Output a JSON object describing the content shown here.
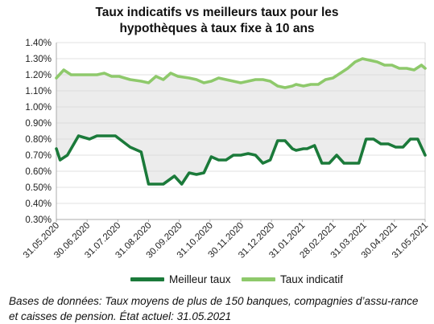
{
  "title_line1": "Taux indicatifs vs meilleurs taux pour les",
  "title_line2": "hypothèques à taux fixe à 10 ans",
  "footnote": "Bases de données: Taux moyens de plus de 150 banques, compagnies d’assu-rance et caisses de pension. État actuel: 31.05.2021",
  "colors": {
    "best": "#1b7a3a",
    "indicative": "#8ec96b",
    "band": "#ececec",
    "grid": "#d6d6d6"
  },
  "chart_data": {
    "type": "line",
    "title": "Taux indicatifs vs meilleurs taux pour les hypothèques à taux fixe à 10 ans",
    "ylim": [
      0.3,
      1.4
    ],
    "y_ticks": [
      "0.30%",
      "0.40%",
      "0.50%",
      "0.60%",
      "0.70%",
      "0.80%",
      "0.90%",
      "1.00%",
      "1.10%",
      "1.20%",
      "1.30%",
      "1.40%"
    ],
    "x_ticks": [
      "31.05.2020",
      "30.06.2020",
      "31.07.2020",
      "31.08.2020",
      "30.09.2020",
      "31.10.2020",
      "30.11.2020",
      "31.12.2020",
      "31.01.2021",
      "28.02.2021",
      "31.03.2021",
      "30.04.2021",
      "31.05.2021"
    ],
    "legend_position": "bottom",
    "grid": true,
    "series": [
      {
        "name": "Meilleur taux",
        "x": [
          0,
          1,
          3,
          6,
          9,
          11,
          13,
          16,
          20,
          23,
          25,
          27,
          29,
          32,
          34,
          36,
          38,
          40,
          42,
          44,
          46,
          48,
          50,
          52,
          54,
          56,
          58,
          60,
          62,
          64,
          65,
          67,
          68,
          70,
          72,
          74,
          76,
          78,
          80,
          82,
          84,
          86,
          88,
          90,
          92,
          94,
          96,
          98,
          100
        ],
        "y": [
          0.74,
          0.67,
          0.7,
          0.82,
          0.8,
          0.82,
          0.82,
          0.82,
          0.75,
          0.72,
          0.52,
          0.52,
          0.52,
          0.57,
          0.52,
          0.59,
          0.58,
          0.59,
          0.69,
          0.67,
          0.67,
          0.7,
          0.7,
          0.71,
          0.7,
          0.65,
          0.67,
          0.79,
          0.79,
          0.74,
          0.73,
          0.74,
          0.74,
          0.76,
          0.65,
          0.65,
          0.7,
          0.65,
          0.65,
          0.65,
          0.8,
          0.8,
          0.77,
          0.77,
          0.75,
          0.75,
          0.8,
          0.8,
          0.7
        ]
      },
      {
        "name": "Taux indicatif",
        "x": [
          0,
          2,
          4,
          7,
          11,
          13,
          15,
          17,
          20,
          23,
          25,
          27,
          29,
          31,
          33,
          36,
          38,
          40,
          42,
          44,
          46,
          48,
          50,
          52,
          54,
          56,
          58,
          60,
          62,
          64,
          65,
          67,
          69,
          71,
          73,
          75,
          77,
          79,
          81,
          83,
          85,
          87,
          89,
          91,
          93,
          95,
          97,
          99,
          100
        ],
        "y": [
          1.18,
          1.23,
          1.2,
          1.2,
          1.2,
          1.21,
          1.19,
          1.19,
          1.17,
          1.16,
          1.15,
          1.19,
          1.17,
          1.21,
          1.19,
          1.18,
          1.17,
          1.15,
          1.16,
          1.18,
          1.17,
          1.16,
          1.15,
          1.16,
          1.17,
          1.17,
          1.16,
          1.13,
          1.12,
          1.13,
          1.14,
          1.13,
          1.14,
          1.14,
          1.17,
          1.18,
          1.21,
          1.24,
          1.28,
          1.3,
          1.29,
          1.28,
          1.26,
          1.26,
          1.24,
          1.24,
          1.23,
          1.26,
          1.24
        ]
      }
    ]
  },
  "legend": {
    "best": "Meilleur taux",
    "indicative": "Taux indicatif"
  }
}
